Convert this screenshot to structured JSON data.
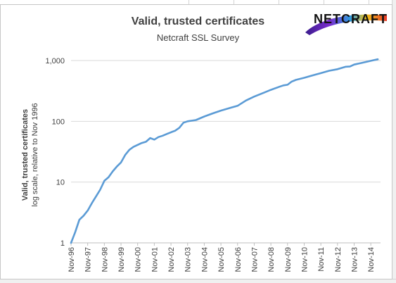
{
  "chart_data": {
    "type": "line",
    "title": "Valid, trusted certificates",
    "subtitle": "Netcraft SSL Survey",
    "ylabel": "Valid, trusted certificates",
    "ylabel_note": "log scale, relative to Nov 1996",
    "xlabel": "",
    "yscale": "log",
    "ylim": [
      1,
      1000
    ],
    "y_ticks": [
      "1",
      "10",
      "100",
      "1,000"
    ],
    "y_tick_values": [
      1,
      10,
      100,
      1000
    ],
    "x_ticks": [
      "Nov-96",
      "Nov-97",
      "Nov-98",
      "Nov-99",
      "Nov-00",
      "Nov-01",
      "Nov-02",
      "Nov-03",
      "Nov-04",
      "Nov-05",
      "Nov-06",
      "Nov-07",
      "Nov-08",
      "Nov-09",
      "Nov-10",
      "Nov-11",
      "Nov-12",
      "Nov-13",
      "Nov-14"
    ],
    "xlim": [
      "1996-11",
      "2015-06"
    ],
    "grid": "horizontal",
    "legend": "none",
    "series": [
      {
        "color": "#5b9bd5",
        "x": [
          "1996-11",
          "1997-02",
          "1997-05",
          "1997-08",
          "1997-11",
          "1998-02",
          "1998-05",
          "1998-08",
          "1998-11",
          "1999-02",
          "1999-05",
          "1999-08",
          "1999-11",
          "2000-02",
          "2000-05",
          "2000-08",
          "2000-11",
          "2001-02",
          "2001-05",
          "2001-08",
          "2001-11",
          "2002-02",
          "2002-05",
          "2002-08",
          "2002-11",
          "2003-02",
          "2003-05",
          "2003-08",
          "2003-11",
          "2004-05",
          "2004-11",
          "2005-05",
          "2005-11",
          "2006-05",
          "2006-11",
          "2007-05",
          "2007-11",
          "2008-05",
          "2008-11",
          "2009-05",
          "2009-08",
          "2009-11",
          "2010-02",
          "2010-05",
          "2010-11",
          "2011-05",
          "2011-11",
          "2012-05",
          "2012-11",
          "2013-05",
          "2013-08",
          "2013-11",
          "2014-05",
          "2014-11",
          "2015-04"
        ],
        "y": [
          1,
          1.5,
          2.4,
          2.8,
          3.4,
          4.5,
          5.8,
          7.5,
          10.5,
          12.0,
          15.0,
          18.0,
          21.0,
          28.0,
          34.0,
          38.0,
          41.0,
          44.0,
          46.0,
          53.0,
          50.0,
          55.0,
          58.0,
          62.0,
          66.0,
          70.0,
          78.0,
          95.0,
          100.0,
          105.0,
          120.0,
          135.0,
          150.0,
          165.0,
          180.0,
          220.0,
          255.0,
          290.0,
          330.0,
          370.0,
          390.0,
          400.0,
          450.0,
          480.0,
          520.0,
          570.0,
          620.0,
          680.0,
          720.0,
          790.0,
          800.0,
          860.0,
          920.0,
          990.0,
          1050.0
        ]
      }
    ]
  },
  "logo": {
    "text": "NETCRAFT"
  }
}
